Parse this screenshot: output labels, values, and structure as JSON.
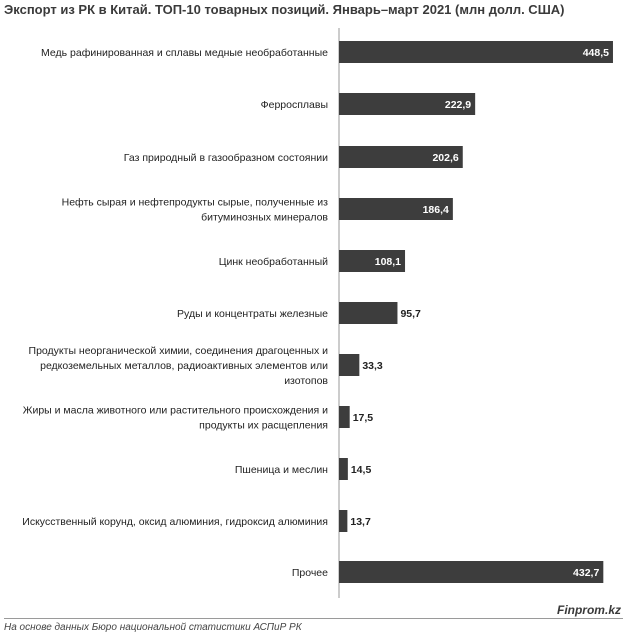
{
  "chart_data": {
    "type": "bar",
    "orientation": "horizontal",
    "title": "Экспорт из РК в Китай. ТОП-10 товарных позиций. Январь–март 2021",
    "unit": "(млн долл. США)",
    "categories": [
      [
        "Медь рафинированная и сплавы медные необработанные"
      ],
      [
        "Ферросплавы"
      ],
      [
        "Газ природный в газообразном состоянии"
      ],
      [
        "Нефть сырая и нефтепродукты сырые, полученные из",
        "битуминозных  минералов"
      ],
      [
        "Цинк необработанный"
      ],
      [
        "Руды и концентраты железные"
      ],
      [
        "Продукты неорганической химии, соединения драгоценных и",
        "редкоземельных металлов, радиоактивных элементов или",
        "изотопов"
      ],
      [
        "Жиры и масла животного или растительного происхождения и",
        "продукты их расщепления"
      ],
      [
        "Пшеница и меслин"
      ],
      [
        "Искусственный корунд, оксид алюминия, гидроксид алюминия"
      ],
      [
        "Прочее"
      ]
    ],
    "values": [
      448.5,
      222.9,
      202.6,
      186.4,
      108.1,
      95.7,
      33.3,
      17.5,
      14.5,
      13.7,
      432.7
    ],
    "value_labels": [
      "448,5",
      "222,9",
      "202,6",
      "186,4",
      "108,1",
      "95,7",
      "33,3",
      "17,5",
      "14,5",
      "13,7",
      "432,7"
    ],
    "xlim": [
      0,
      460
    ],
    "grid": false,
    "legend": "none",
    "bar_color": "#3d3d3d"
  },
  "footer": {
    "source": "На основе данных  Бюро национальной  статистики АСПиР РК",
    "brand": "Finprom.kz"
  }
}
